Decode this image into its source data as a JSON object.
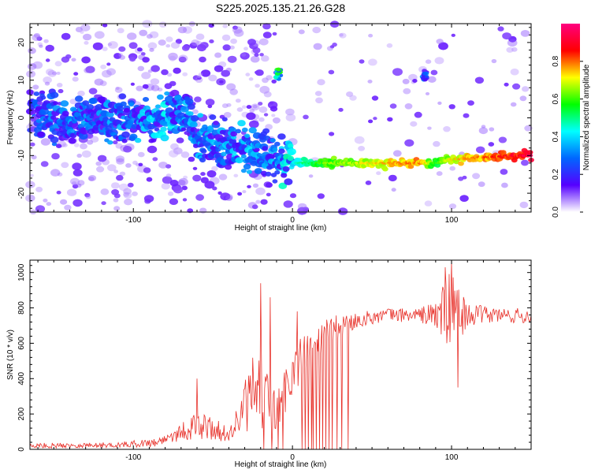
{
  "title": "S225.2025.135.21.26.G28",
  "chart_data": [
    {
      "type": "heatmap",
      "xlabel": "Height of straight line (km)",
      "ylabel": "Frequency (Hz)",
      "xlim": [
        -165,
        150
      ],
      "ylim": [
        -25,
        25
      ],
      "xticks": [
        -100,
        0,
        100
      ],
      "yticks": [
        -20,
        -10,
        0,
        10,
        20
      ],
      "colorbar": {
        "label": "Normalized spectral amplitude",
        "range": [
          0,
          1
        ],
        "ticks": [
          "0.0",
          "0.2",
          "0.4",
          "0.6",
          "0.8"
        ],
        "tick_values": [
          0,
          0.2,
          0.4,
          0.6,
          0.8
        ],
        "colormap": [
          "#ffffff",
          "#5500ff",
          "#0066ff",
          "#00ffff",
          "#00ff00",
          "#ffff00",
          "#ff0000",
          "#ff007f"
        ]
      },
      "ridge": [
        {
          "x": -160,
          "y": 1.0,
          "a": 0.25
        },
        {
          "x": -140,
          "y": -1.5,
          "a": 0.28
        },
        {
          "x": -120,
          "y": 0.5,
          "a": 0.28
        },
        {
          "x": -100,
          "y": -1.5,
          "a": 0.3
        },
        {
          "x": -80,
          "y": -0.5,
          "a": 0.35
        },
        {
          "x": -65,
          "y": 1.5,
          "a": 0.33
        },
        {
          "x": -60,
          "y": -6,
          "a": 0.3
        },
        {
          "x": -45,
          "y": -8,
          "a": 0.32
        },
        {
          "x": -30,
          "y": -7.5,
          "a": 0.33
        },
        {
          "x": -15,
          "y": -10,
          "a": 0.3
        },
        {
          "x": -10,
          "y": -11,
          "a": 0.35
        },
        {
          "x": 0,
          "y": -12,
          "a": 0.4
        },
        {
          "x": 20,
          "y": -12,
          "a": 0.6
        },
        {
          "x": 50,
          "y": -12,
          "a": 0.7
        },
        {
          "x": 80,
          "y": -12,
          "a": 0.78
        },
        {
          "x": 90,
          "y": -12,
          "a": 0.55
        },
        {
          "x": 100,
          "y": -11,
          "a": 0.7
        },
        {
          "x": 120,
          "y": -10.5,
          "a": 0.78
        },
        {
          "x": 140,
          "y": -10,
          "a": 0.88
        },
        {
          "x": 150,
          "y": -10,
          "a": 0.92
        }
      ],
      "features": [
        {
          "x": -9,
          "y": 11.5,
          "a": 0.55,
          "note": "blob"
        },
        {
          "x": 83,
          "y": 11,
          "a": 0.3,
          "note": "blob"
        }
      ]
    },
    {
      "type": "line",
      "xlabel": "Height of straight line (km)",
      "ylabel": "SNR (10 * v/v)",
      "xlim": [
        -165,
        150
      ],
      "ylim": [
        0,
        1070
      ],
      "xticks": [
        -100,
        0,
        100
      ],
      "yticks": [
        0,
        200,
        400,
        600,
        800,
        1000
      ],
      "series": [
        {
          "color": "#e8322b",
          "envelope": [
            {
              "x": -165,
              "base": 20,
              "noise": 15
            },
            {
              "x": -110,
              "base": 25,
              "noise": 15
            },
            {
              "x": -85,
              "base": 40,
              "noise": 25
            },
            {
              "x": -75,
              "base": 80,
              "noise": 40
            },
            {
              "x": -65,
              "base": 120,
              "noise": 70
            },
            {
              "x": -55,
              "base": 130,
              "noise": 80
            },
            {
              "x": -48,
              "base": 110,
              "noise": 60
            },
            {
              "x": -40,
              "base": 80,
              "noise": 40
            },
            {
              "x": -33,
              "base": 180,
              "noise": 120
            },
            {
              "x": -25,
              "base": 320,
              "noise": 200
            },
            {
              "x": -18,
              "base": 300,
              "noise": 200
            },
            {
              "x": -10,
              "base": 200,
              "noise": 150
            },
            {
              "x": 0,
              "base": 430,
              "noise": 150
            },
            {
              "x": 10,
              "base": 560,
              "noise": 120
            },
            {
              "x": 20,
              "base": 640,
              "noise": 90
            },
            {
              "x": 30,
              "base": 700,
              "noise": 70
            },
            {
              "x": 45,
              "base": 740,
              "noise": 40
            },
            {
              "x": 60,
              "base": 760,
              "noise": 40
            },
            {
              "x": 80,
              "base": 760,
              "noise": 40
            },
            {
              "x": 90,
              "base": 760,
              "noise": 90
            },
            {
              "x": 97,
              "base": 780,
              "noise": 220
            },
            {
              "x": 103,
              "base": 780,
              "noise": 200
            },
            {
              "x": 110,
              "base": 760,
              "noise": 60
            },
            {
              "x": 130,
              "base": 760,
              "noise": 45
            },
            {
              "x": 150,
              "base": 750,
              "noise": 45
            }
          ],
          "spikes": [
            {
              "x": -60,
              "y": 400
            },
            {
              "x": -20,
              "y": 940
            },
            {
              "x": -14,
              "y": 860
            },
            {
              "x": 3,
              "y": 780
            },
            {
              "x": 100,
              "y": 1065
            },
            {
              "x": 96,
              "y": 1030
            },
            {
              "x": 104,
              "y": 350
            }
          ],
          "dropouts": [
            -18,
            -13,
            -9,
            -6,
            6,
            8,
            10,
            12,
            13,
            15,
            17,
            19,
            21,
            23,
            25,
            28,
            31,
            35
          ]
        }
      ]
    }
  ]
}
